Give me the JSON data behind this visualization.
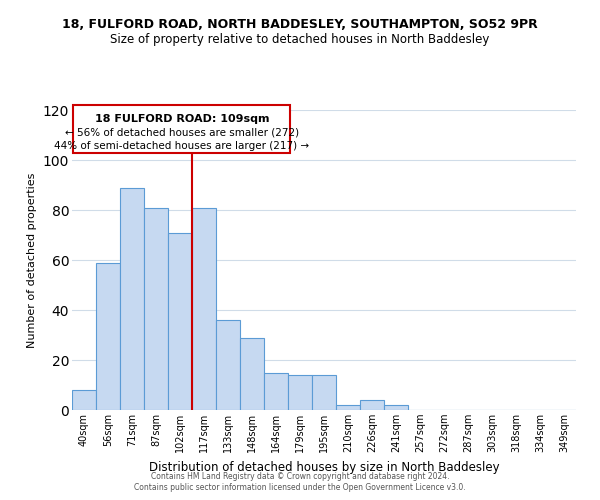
{
  "title": "18, FULFORD ROAD, NORTH BADDESLEY, SOUTHAMPTON, SO52 9PR",
  "subtitle": "Size of property relative to detached houses in North Baddesley",
  "xlabel": "Distribution of detached houses by size in North Baddesley",
  "ylabel": "Number of detached properties",
  "bar_labels": [
    "40sqm",
    "56sqm",
    "71sqm",
    "87sqm",
    "102sqm",
    "117sqm",
    "133sqm",
    "148sqm",
    "164sqm",
    "179sqm",
    "195sqm",
    "210sqm",
    "226sqm",
    "241sqm",
    "257sqm",
    "272sqm",
    "287sqm",
    "303sqm",
    "318sqm",
    "334sqm",
    "349sqm"
  ],
  "bar_heights": [
    8,
    59,
    89,
    81,
    71,
    81,
    36,
    29,
    15,
    14,
    14,
    2,
    4,
    2,
    0,
    0,
    0,
    0,
    0,
    0,
    0
  ],
  "bar_color": "#c6d9f1",
  "bar_edge_color": "#5b9bd5",
  "vline_x": 4.5,
  "vline_color": "#cc0000",
  "ylim": [
    0,
    120
  ],
  "yticks": [
    0,
    20,
    40,
    60,
    80,
    100,
    120
  ],
  "annotation_title": "18 FULFORD ROAD: 109sqm",
  "annotation_line1": "← 56% of detached houses are smaller (272)",
  "annotation_line2": "44% of semi-detached houses are larger (217) →",
  "annotation_box_color": "#ffffff",
  "annotation_box_edge": "#cc0000",
  "footer_line1": "Contains HM Land Registry data © Crown copyright and database right 2024.",
  "footer_line2": "Contains public sector information licensed under the Open Government Licence v3.0.",
  "background_color": "#ffffff",
  "grid_color": "#d0dce8"
}
